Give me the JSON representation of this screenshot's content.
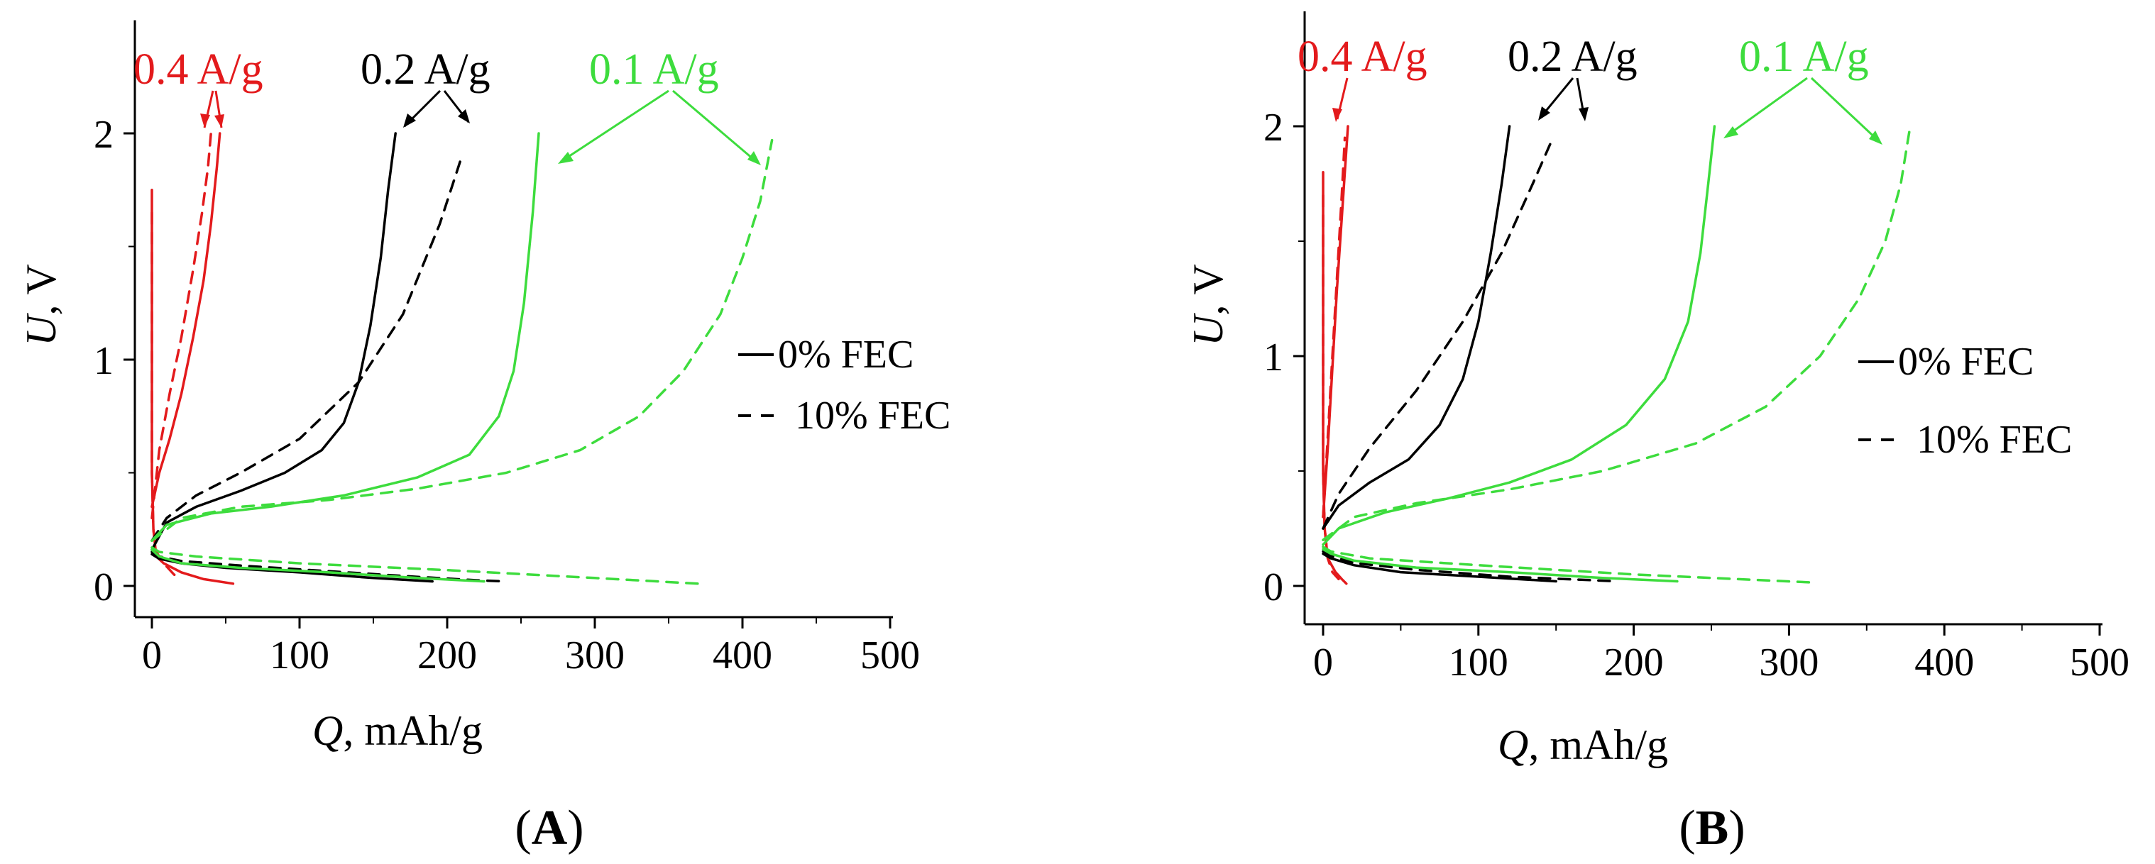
{
  "chart_data": [
    {
      "type": "line",
      "panel_label": "A",
      "xlabel_var": "Q",
      "xlabel_unit": ", mAh/g",
      "ylabel_var": "U",
      "ylabel_unit": ", V",
      "xlim": [
        0,
        500
      ],
      "ylim": [
        0,
        2.5
      ],
      "xticks": [
        0,
        100,
        200,
        300,
        400,
        500
      ],
      "yticks": [
        0,
        1,
        2
      ],
      "grid": false,
      "legend": {
        "placement": "right",
        "entries": [
          {
            "style": "solid",
            "label": "0% FEC"
          },
          {
            "style": "dashed",
            "label": "10% FEC"
          }
        ]
      },
      "annotations": [
        {
          "text": "0.4 A/g",
          "color": "#e31a1c"
        },
        {
          "text": "0.2 A/g",
          "color": "#000000"
        },
        {
          "text": "0.1 A/g",
          "color": "#3ddc3d"
        }
      ],
      "series": [
        {
          "name": "0.4 A/g 0% FEC discharge",
          "rate": "0.4 A/g",
          "fec": "0% FEC",
          "color": "#e31a1c",
          "dash": false,
          "x": [
            0,
            0,
            1,
            3,
            8,
            20,
            35,
            55
          ],
          "y": [
            1.75,
            0.5,
            0.25,
            0.13,
            0.1,
            0.06,
            0.03,
            0.01
          ]
        },
        {
          "name": "0.4 A/g 0% FEC charge",
          "rate": "0.4 A/g",
          "fec": "0% FEC",
          "color": "#e31a1c",
          "dash": false,
          "x": [
            0,
            5,
            12,
            20,
            28,
            35,
            40,
            44,
            46
          ],
          "y": [
            0.35,
            0.5,
            0.65,
            0.85,
            1.1,
            1.35,
            1.6,
            1.85,
            2.0
          ]
        },
        {
          "name": "0.4 A/g 10% FEC discharge",
          "rate": "0.4 A/g",
          "fec": "10% FEC",
          "color": "#e31a1c",
          "dash": true,
          "x": [
            0,
            0,
            1,
            3,
            8,
            15,
            20
          ],
          "y": [
            1.65,
            0.5,
            0.25,
            0.15,
            0.1,
            0.05,
            0.03
          ]
        },
        {
          "name": "0.4 A/g 10% FEC charge",
          "rate": "0.4 A/g",
          "fec": "10% FEC",
          "color": "#e31a1c",
          "dash": true,
          "x": [
            0,
            5,
            12,
            20,
            28,
            34,
            38,
            40
          ],
          "y": [
            0.3,
            0.6,
            0.85,
            1.1,
            1.4,
            1.65,
            1.85,
            2.0
          ]
        },
        {
          "name": "0.2 A/g 0% FEC discharge",
          "rate": "0.2 A/g",
          "fec": "0% FEC",
          "color": "#000000",
          "dash": false,
          "x": [
            0,
            5,
            20,
            50,
            100,
            150,
            190
          ],
          "y": [
            0.14,
            0.12,
            0.1,
            0.08,
            0.06,
            0.035,
            0.02
          ]
        },
        {
          "name": "0.2 A/g 0% FEC charge",
          "rate": "0.2 A/g",
          "fec": "0% FEC",
          "color": "#000000",
          "dash": false,
          "x": [
            0,
            10,
            30,
            60,
            90,
            115,
            130,
            140,
            148,
            155,
            160,
            165
          ],
          "y": [
            0.16,
            0.28,
            0.35,
            0.42,
            0.5,
            0.6,
            0.72,
            0.9,
            1.15,
            1.45,
            1.75,
            2.0
          ]
        },
        {
          "name": "0.2 A/g 10% FEC discharge",
          "rate": "0.2 A/g",
          "fec": "10% FEC",
          "color": "#000000",
          "dash": true,
          "x": [
            0,
            5,
            20,
            60,
            120,
            180,
            220,
            240
          ],
          "y": [
            0.15,
            0.13,
            0.11,
            0.09,
            0.065,
            0.04,
            0.025,
            0.02
          ]
        },
        {
          "name": "0.2 A/g 10% FEC charge",
          "rate": "0.2 A/g",
          "fec": "10% FEC",
          "color": "#000000",
          "dash": true,
          "x": [
            0,
            10,
            30,
            60,
            100,
            140,
            170,
            195,
            210
          ],
          "y": [
            0.2,
            0.3,
            0.4,
            0.5,
            0.65,
            0.9,
            1.2,
            1.6,
            1.9
          ]
        },
        {
          "name": "0.1 A/g 0% FEC discharge",
          "rate": "0.1 A/g",
          "fec": "0% FEC",
          "color": "#3ddc3d",
          "dash": false,
          "x": [
            0,
            5,
            20,
            60,
            120,
            180,
            225
          ],
          "y": [
            0.16,
            0.13,
            0.1,
            0.08,
            0.06,
            0.035,
            0.02
          ]
        },
        {
          "name": "0.1 A/g 0% FEC charge",
          "rate": "0.1 A/g",
          "fec": "0% FEC",
          "color": "#3ddc3d",
          "dash": false,
          "x": [
            0,
            10,
            40,
            80,
            130,
            180,
            215,
            235,
            245,
            252,
            258,
            262
          ],
          "y": [
            0.2,
            0.27,
            0.32,
            0.35,
            0.4,
            0.48,
            0.58,
            0.75,
            0.95,
            1.25,
            1.65,
            2.0
          ]
        },
        {
          "name": "0.1 A/g 10% FEC discharge",
          "rate": "0.1 A/g",
          "fec": "10% FEC",
          "color": "#3ddc3d",
          "dash": true,
          "x": [
            0,
            5,
            30,
            100,
            200,
            300,
            370
          ],
          "y": [
            0.17,
            0.15,
            0.13,
            0.1,
            0.07,
            0.035,
            0.01
          ]
        },
        {
          "name": "0.1 A/g 10% FEC charge",
          "rate": "0.1 A/g",
          "fec": "10% FEC",
          "color": "#3ddc3d",
          "dash": true,
          "x": [
            0,
            20,
            60,
            120,
            180,
            240,
            290,
            330,
            360,
            385,
            400,
            412,
            420
          ],
          "y": [
            0.2,
            0.3,
            0.35,
            0.38,
            0.43,
            0.5,
            0.6,
            0.75,
            0.95,
            1.2,
            1.45,
            1.7,
            1.97
          ]
        }
      ]
    },
    {
      "type": "line",
      "panel_label": "B",
      "xlabel_var": "Q",
      "xlabel_unit": ", mAh/g",
      "ylabel_var": "U",
      "ylabel_unit": ", V",
      "xlim": [
        0,
        500
      ],
      "ylim": [
        0,
        2.5
      ],
      "xticks": [
        0,
        100,
        200,
        300,
        400,
        500
      ],
      "yticks": [
        0,
        1,
        2
      ],
      "grid": false,
      "legend": {
        "placement": "right",
        "entries": [
          {
            "style": "solid",
            "label": "0% FEC"
          },
          {
            "style": "dashed",
            "label": "10% FEC"
          }
        ]
      },
      "annotations": [
        {
          "text": "0.4 A/g",
          "color": "#e31a1c"
        },
        {
          "text": "0.2 A/g",
          "color": "#000000"
        },
        {
          "text": "0.1 A/g",
          "color": "#3ddc3d"
        }
      ],
      "series": [
        {
          "name": "0.4 A/g 0% FEC discharge",
          "rate": "0.4 A/g",
          "fec": "0% FEC",
          "color": "#e31a1c",
          "dash": false,
          "x": [
            0,
            0,
            1,
            3,
            8,
            12,
            15
          ],
          "y": [
            1.8,
            0.5,
            0.25,
            0.12,
            0.06,
            0.03,
            0.01
          ]
        },
        {
          "name": "0.4 A/g 0% FEC charge",
          "rate": "0.4 A/g",
          "fec": "0% FEC",
          "color": "#e31a1c",
          "dash": false,
          "x": [
            0,
            3,
            6,
            9,
            12,
            14,
            16
          ],
          "y": [
            0.3,
            0.6,
            0.95,
            1.3,
            1.6,
            1.8,
            2.0
          ]
        },
        {
          "name": "0.4 A/g 10% FEC discharge",
          "rate": "0.4 A/g",
          "fec": "10% FEC",
          "color": "#e31a1c",
          "dash": true,
          "x": [
            0,
            0,
            1,
            3,
            6,
            10
          ],
          "y": [
            1.7,
            0.5,
            0.25,
            0.12,
            0.06,
            0.03
          ]
        },
        {
          "name": "0.4 A/g 10% FEC charge",
          "rate": "0.4 A/g",
          "fec": "10% FEC",
          "color": "#e31a1c",
          "dash": true,
          "x": [
            0,
            3,
            6,
            9,
            12,
            14
          ],
          "y": [
            0.3,
            0.65,
            1.0,
            1.35,
            1.7,
            1.95
          ]
        },
        {
          "name": "0.2 A/g 0% FEC discharge",
          "rate": "0.2 A/g",
          "fec": "0% FEC",
          "color": "#000000",
          "dash": false,
          "x": [
            0,
            5,
            20,
            50,
            100,
            150
          ],
          "y": [
            0.14,
            0.12,
            0.09,
            0.06,
            0.04,
            0.02
          ]
        },
        {
          "name": "0.2 A/g 0% FEC charge",
          "rate": "0.2 A/g",
          "fec": "0% FEC",
          "color": "#000000",
          "dash": false,
          "x": [
            0,
            10,
            30,
            55,
            75,
            90,
            100,
            108,
            115,
            120
          ],
          "y": [
            0.25,
            0.35,
            0.45,
            0.55,
            0.7,
            0.9,
            1.15,
            1.45,
            1.75,
            2.0
          ]
        },
        {
          "name": "0.2 A/g 10% FEC discharge",
          "rate": "0.2 A/g",
          "fec": "10% FEC",
          "color": "#000000",
          "dash": true,
          "x": [
            0,
            5,
            20,
            60,
            120,
            190
          ],
          "y": [
            0.15,
            0.13,
            0.1,
            0.07,
            0.04,
            0.02
          ]
        },
        {
          "name": "0.2 A/g 10% FEC charge",
          "rate": "0.2 A/g",
          "fec": "10% FEC",
          "color": "#000000",
          "dash": true,
          "x": [
            0,
            10,
            30,
            60,
            90,
            115,
            135,
            148
          ],
          "y": [
            0.25,
            0.4,
            0.6,
            0.85,
            1.15,
            1.45,
            1.75,
            1.95
          ]
        },
        {
          "name": "0.1 A/g 0% FEC discharge",
          "rate": "0.1 A/g",
          "fec": "0% FEC",
          "color": "#3ddc3d",
          "dash": false,
          "x": [
            0,
            5,
            20,
            60,
            120,
            180,
            228
          ],
          "y": [
            0.16,
            0.14,
            0.11,
            0.08,
            0.06,
            0.035,
            0.02
          ]
        },
        {
          "name": "0.1 A/g 0% FEC charge",
          "rate": "0.1 A/g",
          "fec": "0% FEC",
          "color": "#3ddc3d",
          "dash": false,
          "x": [
            0,
            10,
            40,
            80,
            120,
            160,
            195,
            220,
            235,
            243,
            248,
            252
          ],
          "y": [
            0.18,
            0.25,
            0.32,
            0.38,
            0.45,
            0.55,
            0.7,
            0.9,
            1.15,
            1.45,
            1.75,
            2.0
          ]
        },
        {
          "name": "0.1 A/g 10% FEC discharge",
          "rate": "0.1 A/g",
          "fec": "10% FEC",
          "color": "#3ddc3d",
          "dash": true,
          "x": [
            0,
            5,
            30,
            100,
            200,
            315
          ],
          "y": [
            0.17,
            0.15,
            0.12,
            0.09,
            0.05,
            0.015
          ]
        },
        {
          "name": "0.1 A/g 10% FEC charge",
          "rate": "0.1 A/g",
          "fec": "10% FEC",
          "color": "#3ddc3d",
          "dash": true,
          "x": [
            0,
            20,
            60,
            120,
            180,
            240,
            285,
            320,
            345,
            362,
            372,
            378
          ],
          "y": [
            0.2,
            0.3,
            0.36,
            0.42,
            0.5,
            0.62,
            0.78,
            1.0,
            1.25,
            1.5,
            1.75,
            2.0
          ]
        }
      ]
    }
  ]
}
